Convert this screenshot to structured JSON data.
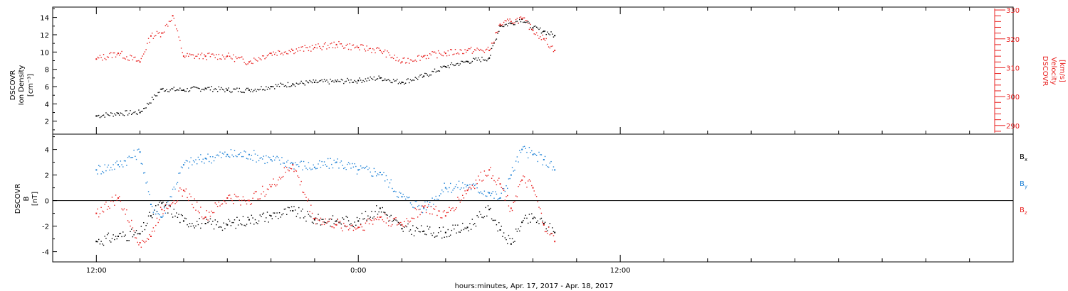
{
  "chart_data": [
    {
      "type": "scatter",
      "panel": "top",
      "ylabel_left": [
        "DSCOVR",
        "Ion Density",
        "[cm⁻³]"
      ],
      "ylabel_right": [
        "DSCOVR",
        "Velocity",
        "[km/s]"
      ],
      "left_axis": {
        "ylim": [
          0.5,
          15.2
        ],
        "ticks": [
          2,
          4,
          6,
          8,
          10,
          12,
          14
        ]
      },
      "right_axis": {
        "ylim": [
          287,
          331
        ],
        "ticks": [
          290,
          300,
          310,
          320,
          330
        ]
      },
      "series": [
        {
          "color": "#000000",
          "axis": "left",
          "points": [
            [
              0,
              2.6
            ],
            [
              1,
              2.9
            ],
            [
              2,
              3.0
            ],
            [
              3,
              5.7
            ],
            [
              4,
              5.6
            ],
            [
              5,
              5.8
            ],
            [
              6,
              5.6
            ],
            [
              7,
              5.6
            ],
            [
              8,
              6.0
            ],
            [
              9,
              6.3
            ],
            [
              10,
              6.5
            ],
            [
              11,
              6.6
            ],
            [
              12,
              6.7
            ],
            [
              13,
              7.0
            ],
            [
              14,
              6.5
            ],
            [
              15,
              7.2
            ],
            [
              16,
              8.3
            ],
            [
              17,
              8.9
            ],
            [
              18,
              9.3
            ],
            [
              18.5,
              13.0
            ],
            [
              19,
              13.3
            ],
            [
              19.5,
              13.8
            ],
            [
              20,
              12.8
            ],
            [
              20.5,
              12.4
            ],
            [
              21,
              11.9
            ]
          ]
        },
        {
          "color": "#e8201f",
          "axis": "right",
          "points": [
            [
              0,
              313
            ],
            [
              1,
              315
            ],
            [
              2,
              312
            ],
            [
              2.5,
              321
            ],
            [
              3,
              322
            ],
            [
              3.5,
              328
            ],
            [
              4,
              314
            ],
            [
              5,
              314
            ],
            [
              6,
              314
            ],
            [
              7,
              312
            ],
            [
              8,
              315
            ],
            [
              9,
              316
            ],
            [
              10,
              317
            ],
            [
              11,
              318
            ],
            [
              12,
              317
            ],
            [
              13,
              316
            ],
            [
              14,
              312
            ],
            [
              15,
              314
            ],
            [
              16,
              315
            ],
            [
              17,
              316
            ],
            [
              18,
              316
            ],
            [
              18.5,
              325
            ],
            [
              19,
              326
            ],
            [
              19.5,
              327
            ],
            [
              20,
              323
            ],
            [
              20.5,
              320
            ],
            [
              21,
              316
            ]
          ]
        }
      ]
    },
    {
      "type": "scatter",
      "panel": "bottom",
      "ylabel": [
        "DSCOVR",
        "B",
        "[nT]"
      ],
      "ylim": [
        -4.8,
        5.2
      ],
      "ticks": [
        -4,
        -2,
        0,
        2,
        4
      ],
      "series": [
        {
          "name": "Bx",
          "color": "#000000",
          "points": [
            [
              0,
              -3.2
            ],
            [
              1,
              -2.8
            ],
            [
              2,
              -2.6
            ],
            [
              2.5,
              -1.2
            ],
            [
              3,
              -0.2
            ],
            [
              4,
              -1.6
            ],
            [
              5,
              -1.8
            ],
            [
              6,
              -1.9
            ],
            [
              7,
              -1.5
            ],
            [
              8,
              -1.2
            ],
            [
              9,
              -0.8
            ],
            [
              10,
              -1.5
            ],
            [
              11,
              -1.6
            ],
            [
              12,
              -1.6
            ],
            [
              13,
              -0.6
            ],
            [
              14,
              -2.2
            ],
            [
              15,
              -2.4
            ],
            [
              16,
              -2.5
            ],
            [
              17,
              -2.1
            ],
            [
              18,
              -0.7
            ],
            [
              18.5,
              -2.3
            ],
            [
              19,
              -3.4
            ],
            [
              19.5,
              -1.7
            ],
            [
              20,
              -1.4
            ],
            [
              20.5,
              -1.8
            ],
            [
              21,
              -2.5
            ]
          ]
        },
        {
          "name": "By",
          "color": "#1f82d6",
          "points": [
            [
              0,
              2.4
            ],
            [
              1,
              2.8
            ],
            [
              2,
              3.8
            ],
            [
              2.5,
              -0.3
            ],
            [
              3,
              -1.3
            ],
            [
              4,
              2.8
            ],
            [
              5,
              3.3
            ],
            [
              6,
              3.6
            ],
            [
              7,
              3.6
            ],
            [
              8,
              3.2
            ],
            [
              9,
              2.9
            ],
            [
              10,
              2.6
            ],
            [
              11,
              3.0
            ],
            [
              12,
              2.4
            ],
            [
              13,
              2.2
            ],
            [
              14,
              0.3
            ],
            [
              15,
              -0.6
            ],
            [
              16,
              1.0
            ],
            [
              17,
              1.2
            ],
            [
              18,
              0.6
            ],
            [
              18.5,
              0.2
            ],
            [
              19,
              2.0
            ],
            [
              19.5,
              4.0
            ],
            [
              20,
              3.6
            ],
            [
              20.5,
              3.2
            ],
            [
              21,
              2.4
            ]
          ]
        },
        {
          "name": "Bz",
          "color": "#e8201f",
          "points": [
            [
              0,
              -1.0
            ],
            [
              1,
              0.2
            ],
            [
              2,
              -3.3
            ],
            [
              2.5,
              -2.8
            ],
            [
              3,
              -0.7
            ],
            [
              4,
              0.8
            ],
            [
              5,
              -1.3
            ],
            [
              6,
              0.2
            ],
            [
              7,
              0.0
            ],
            [
              8,
              1.1
            ],
            [
              9,
              2.8
            ],
            [
              10,
              -1.4
            ],
            [
              11,
              -1.9
            ],
            [
              12,
              -2.1
            ],
            [
              13,
              -1.3
            ],
            [
              14,
              -1.9
            ],
            [
              15,
              -0.5
            ],
            [
              16,
              -1.2
            ],
            [
              17,
              0.8
            ],
            [
              18,
              2.4
            ],
            [
              18.5,
              1.3
            ],
            [
              19,
              -0.6
            ],
            [
              19.5,
              1.6
            ],
            [
              20,
              1.0
            ],
            [
              20.5,
              -1.9
            ],
            [
              21,
              -3.2
            ]
          ]
        }
      ]
    }
  ],
  "legend": [
    {
      "series": "Bx",
      "base": "B",
      "sub": "x",
      "color": "#000000"
    },
    {
      "series": "By",
      "base": "B",
      "sub": "y",
      "color": "#1f82d6"
    },
    {
      "series": "Bz",
      "base": "B",
      "sub": "z",
      "color": "#e8201f"
    }
  ],
  "x_axis": {
    "range": [
      -2,
      42
    ],
    "tick_labels": [
      {
        "x": 0,
        "label": "12:00"
      },
      {
        "x": 12,
        "label": "0:00"
      },
      {
        "x": 24,
        "label": "12:00"
      }
    ],
    "minor_tick_step": 2,
    "xlabel": "hours:minutes, Apr. 17, 2017 - Apr. 18, 2017"
  }
}
